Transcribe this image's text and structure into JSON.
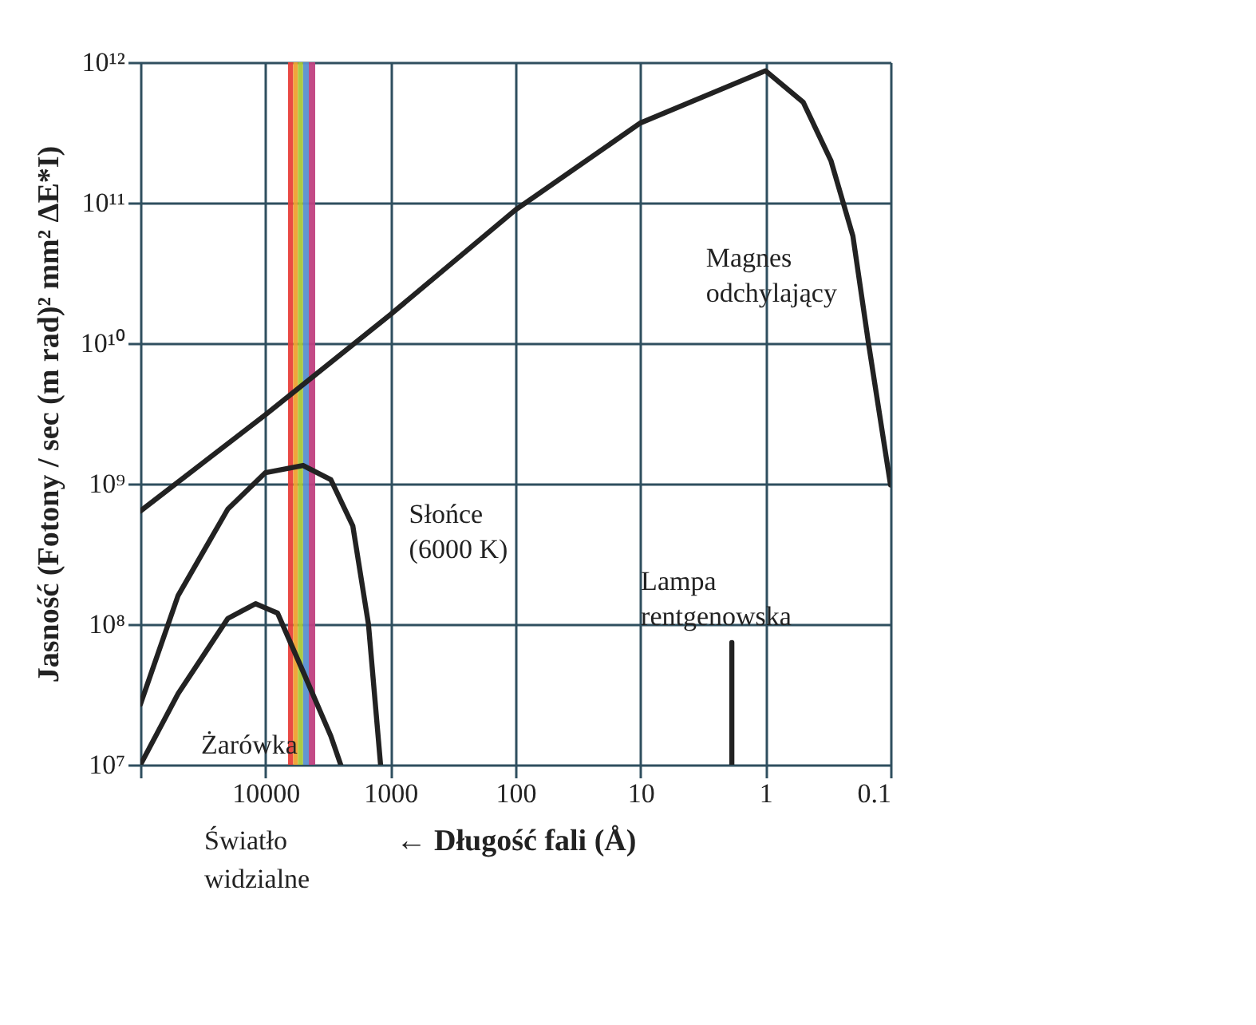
{
  "chart_data": {
    "type": "line",
    "xlabel": "← Długość fali (Å)",
    "ylabel": "Jasność (Fotony / sec (m rad)² mm² ΔE*I)",
    "log": "xy",
    "xlim": [
      100000,
      0.1
    ],
    "xticks": [
      {
        "value": 100000,
        "label": null
      },
      10000,
      1000,
      100,
      10,
      1,
      0.1
    ],
    "ylim": [
      10000000,
      1000000000000
    ],
    "yticks": [
      {
        "value": 10000000,
        "label": "10⁷"
      },
      {
        "value": 100000000,
        "label": "10⁸"
      },
      {
        "value": 1000000000,
        "label": "10⁹"
      },
      {
        "value": 10000000000,
        "label": "10¹⁰"
      },
      {
        "value": 100000000000,
        "label": "10¹¹"
      },
      {
        "value": 1000000000000,
        "label": "10¹²"
      }
    ],
    "grid": true,
    "series": [
      {
        "name": "Magnes odchylający",
        "color": "#222222",
        "x": [
          100000,
          10000,
          1000,
          100,
          10,
          1,
          0.5,
          0.3,
          0.2,
          0.15,
          0.1
        ],
        "values": [
          640000000,
          3100000000,
          16000000000,
          89000000000,
          370000000000,
          870000000000,
          520000000000,
          200000000000,
          58000000000,
          10000000000,
          980000000
        ]
      },
      {
        "name": "Słońce (6000 K)",
        "color": "#222222",
        "x": [
          100000,
          50000,
          20000,
          10000,
          5000,
          3000,
          2000,
          1500,
          1200
        ],
        "values": [
          27000000,
          160000000,
          660000000,
          1200000000,
          1350000000,
          1070000000,
          500000000,
          100000000,
          10000000
        ]
      },
      {
        "name": "Żarówka",
        "color": "#222222",
        "x": [
          100000,
          50000,
          20000,
          12000,
          8000,
          5000,
          3000,
          2500
        ],
        "values": [
          10000000,
          32000000,
          110000000,
          140000000,
          120000000,
          46000000,
          16000000,
          10000000
        ]
      },
      {
        "name": "Lampa rentgenowska",
        "color": "#222222",
        "x": [
          1.86,
          1.86
        ],
        "values": [
          10000000,
          74000000
        ]
      }
    ],
    "bands": [
      {
        "axis": "x",
        "from": 6600,
        "to": 6000,
        "label": null,
        "color": "#e8403a"
      },
      {
        "axis": "x",
        "from": 6000,
        "to": 5500,
        "label": null,
        "color": "#f0a030"
      },
      {
        "axis": "x",
        "from": 5500,
        "to": 5000,
        "label": null,
        "color": "#a8c838"
      },
      {
        "axis": "x",
        "from": 5000,
        "to": 4500,
        "label": null,
        "color": "#5a8fd0"
      },
      {
        "axis": "x",
        "from": 4500,
        "to": 4000,
        "label": null,
        "color": "#c04080"
      }
    ],
    "annotations": [
      "Światło\nwidzialne"
    ]
  }
}
